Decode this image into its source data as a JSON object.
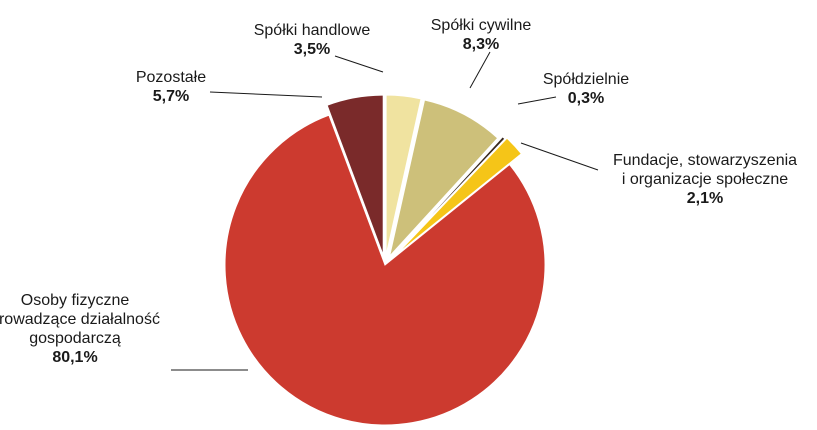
{
  "chart_data": {
    "type": "pie",
    "title": "",
    "slices": [
      {
        "category": [
          "Spółki handlowe"
        ],
        "value_label": "3,5%",
        "value": 3.5,
        "color": "#f0e3a0"
      },
      {
        "category": [
          "Spółki cywilne"
        ],
        "value_label": "8,3%",
        "value": 8.3,
        "color": "#cdc07a"
      },
      {
        "category": [
          "Spółdzielnie"
        ],
        "value_label": "0,3%",
        "value": 0.3,
        "color": "#3a2a20"
      },
      {
        "category": [
          "Fundacje, stowarzyszenia",
          "i organizacje społeczne"
        ],
        "value_label": "2,1%",
        "value": 2.1,
        "color": "#f5c518"
      },
      {
        "category": [
          "Osoby fizyczne",
          "prowadzące działalność",
          "gospodarczą"
        ],
        "value_label": "80,1%",
        "value": 80.1,
        "color": "#cc3a2f"
      },
      {
        "category": [
          "Pozostałe"
        ],
        "value_label": "5,7%",
        "value": 5.7,
        "color": "#7a2a2a"
      }
    ]
  }
}
